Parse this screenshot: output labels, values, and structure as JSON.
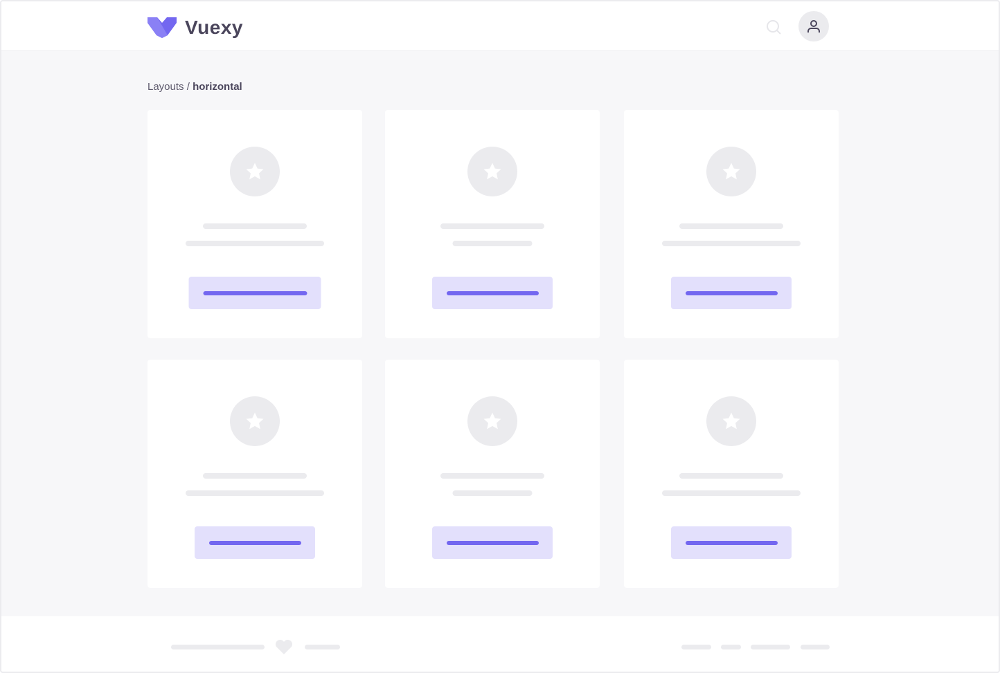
{
  "app": {
    "name": "Vuexy",
    "brand_color": "#7367f0"
  },
  "header": {
    "icons": [
      "search-icon",
      "user-icon"
    ]
  },
  "breadcrumb": {
    "parent": "Layouts",
    "separator": " / ",
    "current": "horizontal"
  },
  "cards": [
    {
      "icon": "star-icon"
    },
    {
      "icon": "star-icon"
    },
    {
      "icon": "star-icon"
    },
    {
      "icon": "star-icon"
    },
    {
      "icon": "star-icon"
    },
    {
      "icon": "star-icon"
    }
  ],
  "footer": {
    "icon": "heart-icon"
  }
}
